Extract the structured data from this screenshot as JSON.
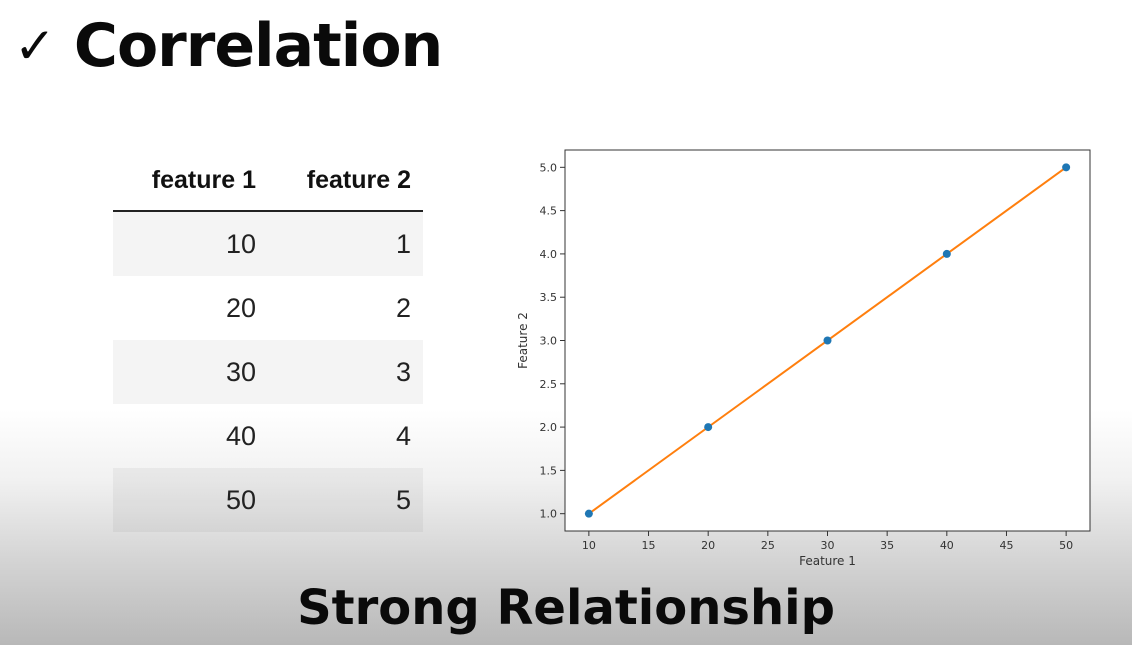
{
  "title": {
    "check": "✓",
    "text": "Correlation"
  },
  "table": {
    "headers": [
      "feature 1",
      "feature 2"
    ],
    "rows": [
      [
        "10",
        "1"
      ],
      [
        "20",
        "2"
      ],
      [
        "30",
        "3"
      ],
      [
        "40",
        "4"
      ],
      [
        "50",
        "5"
      ]
    ]
  },
  "chart_data": {
    "type": "scatter",
    "x": [
      10,
      20,
      30,
      40,
      50
    ],
    "y": [
      1,
      2,
      3,
      4,
      5
    ],
    "fit_line": {
      "x": [
        10,
        50
      ],
      "y": [
        1,
        5
      ]
    },
    "xlabel": "Feature 1",
    "ylabel": "Feature 2",
    "xlim": [
      8,
      52
    ],
    "ylim": [
      0.8,
      5.2
    ],
    "xticks": [
      10,
      15,
      20,
      25,
      30,
      35,
      40,
      45,
      50
    ],
    "yticks": [
      1.0,
      1.5,
      2.0,
      2.5,
      3.0,
      3.5,
      4.0,
      4.5,
      5.0
    ],
    "grid": false,
    "point_color": "#1f77b4",
    "line_color": "#ff7f0e"
  },
  "footer": {
    "text": "Strong Relationship"
  }
}
